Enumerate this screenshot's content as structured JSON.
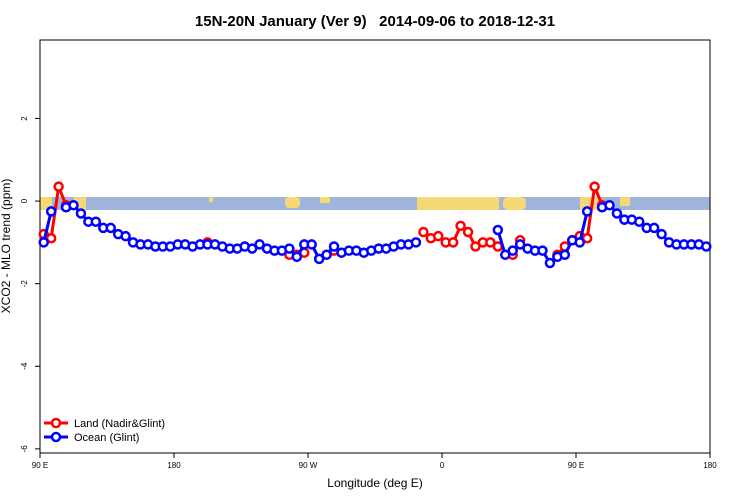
{
  "chart_data": {
    "type": "line",
    "title": "15N-20N January (Ver 9)   2014-09-06 to 2018-12-31",
    "x_label": "Longitude (deg E)",
    "y_label": "XCO2 - MLO trend (ppm)",
    "x": [
      92.5,
      97.5,
      102.5,
      107.5,
      112.5,
      117.5,
      122.5,
      127.5,
      132.5,
      137.5,
      142.5,
      147.5,
      152.5,
      157.5,
      162.5,
      167.5,
      172.5,
      177.5,
      182.5,
      187.5,
      192.5,
      197.5,
      202.5,
      207.5,
      212.5,
      217.5,
      222.5,
      227.5,
      232.5,
      237.5,
      242.5,
      247.5,
      252.5,
      257.5,
      262.5,
      267.5,
      272.5,
      277.5,
      282.5,
      287.5,
      292.5,
      297.5,
      302.5,
      307.5,
      312.5,
      317.5,
      322.5,
      327.5,
      332.5,
      337.5,
      342.5,
      347.5,
      352.5,
      357.5,
      362.5,
      367.5,
      372.5,
      377.5,
      382.5,
      387.5,
      392.5,
      397.5,
      402.5,
      407.5,
      412.5,
      417.5,
      422.5,
      427.5,
      432.5,
      437.5,
      442.5,
      447.5,
      452.5,
      457.5,
      462.5,
      467.5,
      472.5,
      477.5,
      482.5,
      487.5,
      492.5,
      497.5,
      502.5,
      507.5,
      512.5,
      517.5,
      522.5,
      527.5,
      532.5,
      537.5
    ],
    "series": [
      {
        "name": "Land (Nadir&Glint)",
        "color": "#ff0000",
        "values": [
          -0.8,
          -0.9,
          0.35,
          -0.1,
          null,
          null,
          null,
          null,
          null,
          null,
          null,
          null,
          null,
          null,
          null,
          null,
          null,
          null,
          null,
          null,
          null,
          null,
          -1.0,
          null,
          null,
          null,
          null,
          null,
          null,
          null,
          null,
          null,
          null,
          -1.3,
          -1.3,
          -1.25,
          null,
          null,
          null,
          -1.2,
          null,
          null,
          null,
          null,
          null,
          null,
          null,
          null,
          null,
          null,
          null,
          -0.75,
          -0.9,
          -0.85,
          -1.0,
          -1.0,
          -0.6,
          -0.75,
          -1.1,
          -1.0,
          -1.0,
          -1.1,
          null,
          -1.3,
          -0.95,
          null,
          null,
          null,
          null,
          -1.3,
          -1.1,
          -0.95,
          -0.85,
          -0.9,
          0.35,
          -0.1,
          null,
          null,
          -0.45,
          null,
          null,
          null,
          null,
          null,
          null,
          null,
          null,
          null,
          null,
          null
        ]
      },
      {
        "name": "Ocean (Glint)",
        "color": "#0000ff",
        "values": [
          -1.0,
          -0.25,
          null,
          -0.15,
          -0.1,
          -0.3,
          -0.5,
          -0.5,
          -0.65,
          -0.65,
          -0.8,
          -0.85,
          -1.0,
          -1.05,
          -1.05,
          -1.1,
          -1.1,
          -1.1,
          -1.05,
          -1.05,
          -1.1,
          -1.05,
          -1.05,
          -1.05,
          -1.1,
          -1.15,
          -1.15,
          -1.1,
          -1.15,
          -1.05,
          -1.15,
          -1.2,
          -1.2,
          -1.15,
          -1.35,
          -1.05,
          -1.05,
          -1.4,
          -1.3,
          -1.1,
          -1.25,
          -1.2,
          -1.2,
          -1.25,
          -1.2,
          -1.15,
          -1.15,
          -1.1,
          -1.05,
          -1.05,
          -1.0,
          null,
          null,
          null,
          null,
          null,
          null,
          null,
          null,
          null,
          null,
          -0.7,
          -1.3,
          -1.2,
          -1.05,
          -1.15,
          -1.2,
          -1.2,
          -1.5,
          -1.35,
          -1.3,
          -0.95,
          -1.0,
          -0.25,
          null,
          -0.15,
          -0.1,
          -0.3,
          -0.45,
          -0.45,
          -0.5,
          -0.65,
          -0.65,
          -0.8,
          -1.0,
          -1.05,
          -1.05,
          -1.05,
          -1.05,
          -1.1
        ]
      }
    ],
    "xlim": [
      90,
      540
    ],
    "xticks": [
      {
        "value": 90,
        "label": "90 E"
      },
      180,
      {
        "value": 270,
        "label": "90 W"
      },
      {
        "value": 360,
        "label": "0"
      },
      {
        "value": 450,
        "label": "90 E"
      },
      {
        "value": 540,
        "label": "180"
      }
    ],
    "ylim": [
      -6.1,
      3.9
    ],
    "yticks": [
      -6,
      -4,
      -2,
      0,
      2
    ],
    "legend": "bottom-left"
  }
}
